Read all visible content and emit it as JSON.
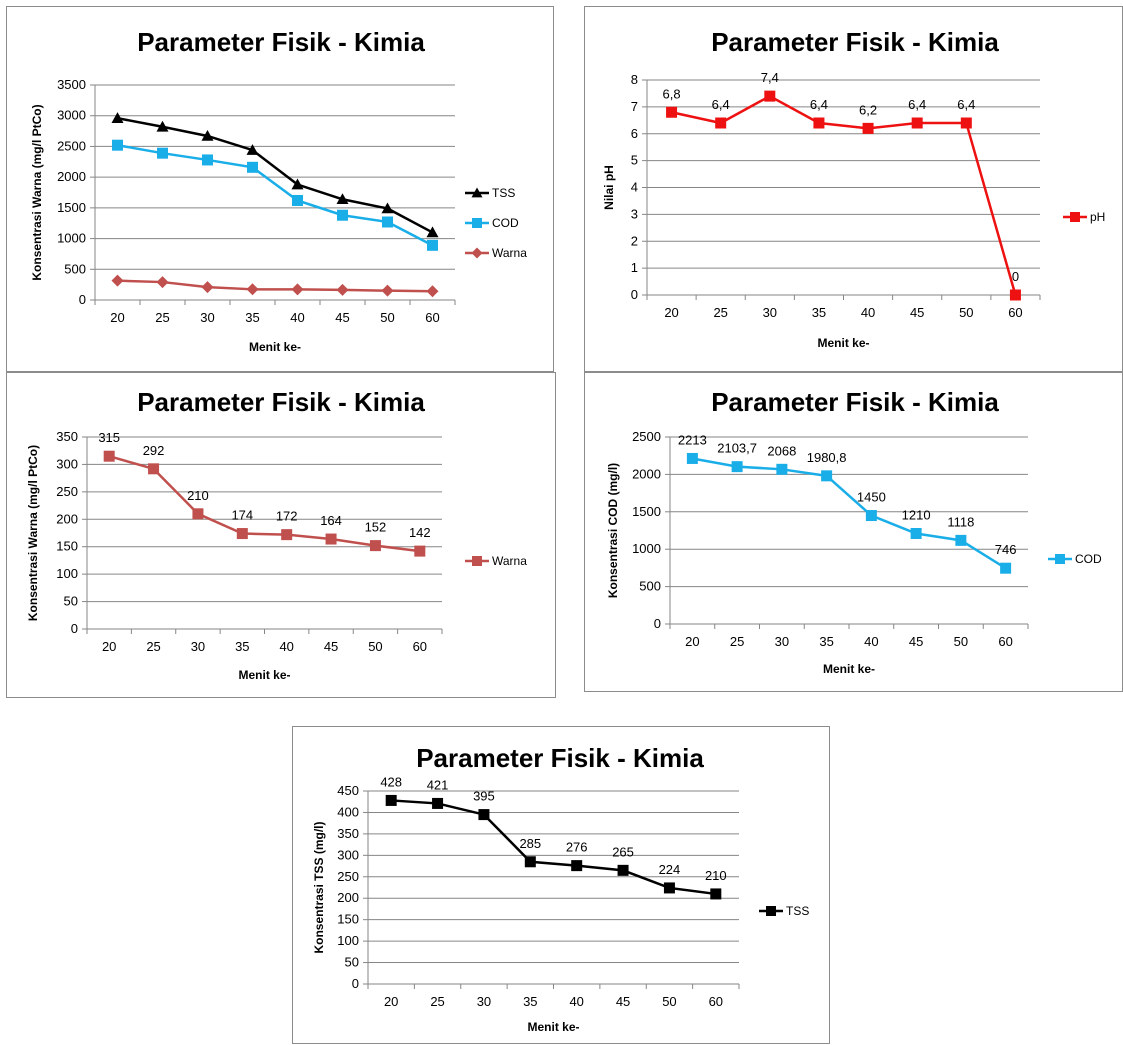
{
  "chart_data": [
    {
      "type": "line",
      "title": "Parameter Fisik - Kimia",
      "xlabel": "Menit ke-",
      "ylabel": "Konsentrasi Warna (mg/l PtCo)",
      "categories": [
        "20",
        "25",
        "30",
        "35",
        "40",
        "45",
        "50",
        "60"
      ],
      "ylim": [
        0,
        3500
      ],
      "yticks": [
        "0",
        "500",
        "1000",
        "1500",
        "2000",
        "2500",
        "3000",
        "3500"
      ],
      "grid": true,
      "legend": "right",
      "series": [
        {
          "name": "TSS",
          "color": "#000000",
          "marker": "triangle",
          "values": [
            2960,
            2820,
            2670,
            2440,
            1880,
            1640,
            1490,
            1100
          ]
        },
        {
          "name": "COD",
          "color": "#1aaee8",
          "marker": "square",
          "values": [
            2520,
            2390,
            2280,
            2160,
            1620,
            1380,
            1270,
            890
          ]
        },
        {
          "name": "Warna",
          "color": "#c0504d",
          "marker": "diamond",
          "values": [
            315,
            292,
            210,
            174,
            172,
            164,
            152,
            142
          ]
        }
      ]
    },
    {
      "type": "line",
      "title": "Parameter Fisik - Kimia",
      "xlabel": "Menit ke-",
      "ylabel": "Nilai pH",
      "categories": [
        "20",
        "25",
        "30",
        "35",
        "40",
        "45",
        "50",
        "60"
      ],
      "ylim": [
        0,
        8
      ],
      "yticks": [
        "0",
        "1",
        "2",
        "3",
        "4",
        "5",
        "6",
        "7",
        "8"
      ],
      "grid": true,
      "legend": "right",
      "series": [
        {
          "name": "pH",
          "color": "#ee1111",
          "marker": "square",
          "values": [
            6.8,
            6.4,
            7.4,
            6.4,
            6.2,
            6.4,
            6.4,
            0
          ],
          "labels": [
            "6,8",
            "6,4",
            "7,4",
            "6,4",
            "6,2",
            "6,4",
            "6,4",
            "0"
          ]
        }
      ]
    },
    {
      "type": "line",
      "title": "Parameter Fisik - Kimia",
      "xlabel": "Menit ke-",
      "ylabel": "Konsentrasi Warna (mg/l PtCo)",
      "categories": [
        "20",
        "25",
        "30",
        "35",
        "40",
        "45",
        "50",
        "60"
      ],
      "ylim": [
        0,
        350
      ],
      "yticks": [
        "0",
        "50",
        "100",
        "150",
        "200",
        "250",
        "300",
        "350"
      ],
      "grid": true,
      "legend": "right",
      "series": [
        {
          "name": "Warna",
          "color": "#c0504d",
          "marker": "square",
          "values": [
            315,
            292,
            210,
            174,
            172,
            164,
            152,
            142
          ],
          "labels": [
            "315",
            "292",
            "210",
            "174",
            "172",
            "164",
            "152",
            "142"
          ]
        }
      ]
    },
    {
      "type": "line",
      "title": "Parameter Fisik - Kimia",
      "xlabel": "Menit ke-",
      "ylabel": "Konsentrasi COD (mg/l)",
      "categories": [
        "20",
        "25",
        "30",
        "35",
        "40",
        "45",
        "50",
        "60"
      ],
      "ylim": [
        0,
        2500
      ],
      "yticks": [
        "0",
        "500",
        "1000",
        "1500",
        "2000",
        "2500"
      ],
      "grid": true,
      "legend": "right",
      "series": [
        {
          "name": "COD",
          "color": "#1aaee8",
          "marker": "square",
          "values": [
            2213,
            2103.7,
            2068,
            1980.8,
            1450,
            1210,
            1118,
            746
          ],
          "labels": [
            "2213",
            "2103,7",
            "2068",
            "1980,8",
            "1450",
            "1210",
            "1118",
            "746"
          ]
        }
      ]
    },
    {
      "type": "line",
      "title": "Parameter Fisik - Kimia",
      "xlabel": "Menit ke-",
      "ylabel": "Konsentrasi TSS (mg/l)",
      "categories": [
        "20",
        "25",
        "30",
        "35",
        "40",
        "45",
        "50",
        "60"
      ],
      "ylim": [
        0,
        450
      ],
      "yticks": [
        "0",
        "50",
        "100",
        "150",
        "200",
        "250",
        "300",
        "350",
        "400",
        "450"
      ],
      "grid": true,
      "legend": "right",
      "series": [
        {
          "name": "TSS",
          "color": "#000000",
          "marker": "square",
          "values": [
            428,
            421,
            395,
            285,
            276,
            265,
            224,
            210
          ],
          "labels": [
            "428",
            "421",
            "395",
            "285",
            "276",
            "265",
            "224",
            "210"
          ]
        }
      ]
    }
  ]
}
